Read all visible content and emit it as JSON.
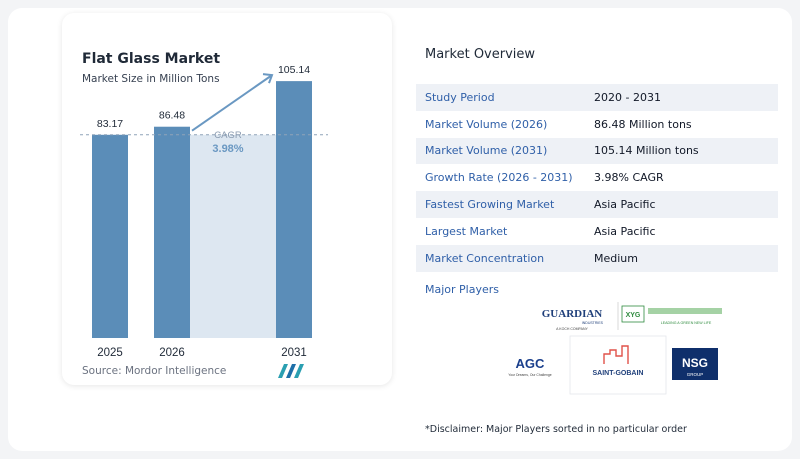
{
  "chart_data": {
    "type": "bar",
    "title": "Flat Glass Market",
    "subtitle": "Market Size in Million Tons",
    "categories": [
      "2025",
      "2026",
      "2031"
    ],
    "values": [
      83.17,
      86.48,
      105.14
    ],
    "value_labels": [
      "83.17",
      "86.48",
      "105.14"
    ],
    "ylim": [
      0,
      110
    ],
    "cagr_label": "CAGR",
    "cagr_value": "3.98%",
    "bar_color": "#5b8db8",
    "shade_color": "#dde7f1",
    "accent_color": "#6a98c2"
  },
  "source": "Source:  Mordor Intelligence",
  "overview": {
    "title": "Market Overview",
    "rows": [
      {
        "key": "Study Period",
        "value": "2020 - 2031"
      },
      {
        "key": "Market Volume (2026)",
        "value": "86.48 Million tons"
      },
      {
        "key": "Market Volume (2031)",
        "value": "105.14 Million tons"
      },
      {
        "key": "Growth Rate (2026 - 2031)",
        "value": "3.98% CAGR"
      },
      {
        "key": "Fastest Growing Market",
        "value": "Asia Pacific"
      },
      {
        "key": "Largest Market",
        "value": "Asia Pacific"
      },
      {
        "key": "Market Concentration",
        "value": "Medium"
      }
    ]
  },
  "players": {
    "title": "Major Players",
    "logos": {
      "guardian": "GUARDIAN",
      "guardian_sub": "INDUSTRIES",
      "guardian_tag": "A KOCH COMPANY",
      "xyg": "XYG",
      "xyg_tag": "LEADING A GREEN NEW LIFE",
      "agc": "AGC",
      "agc_tag": "Your Dreams, Our Challenge",
      "saint_gobain": "SAINT-GOBAIN",
      "nsg": "NSG",
      "nsg_sub": "GROUP"
    }
  },
  "disclaimer": "*Disclaimer: Major Players sorted in no particular order"
}
